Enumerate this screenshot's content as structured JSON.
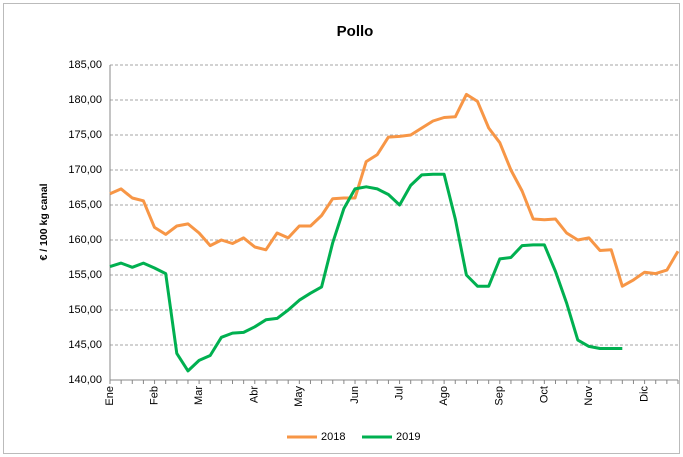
{
  "chart_data": {
    "type": "line",
    "title": "Pollo",
    "y_label": "€ / 100 kg canal",
    "categories": [
      "Ene",
      null,
      null,
      null,
      "Feb",
      null,
      null,
      null,
      "Mar",
      null,
      null,
      null,
      null,
      "Abr",
      null,
      null,
      null,
      "May",
      null,
      null,
      null,
      null,
      "Jun",
      null,
      null,
      null,
      "Jul",
      null,
      null,
      null,
      "Ago",
      null,
      null,
      null,
      null,
      "Sep",
      null,
      null,
      null,
      "Oct",
      null,
      null,
      null,
      "Nov",
      null,
      null,
      null,
      null,
      "Dic",
      null,
      null,
      null
    ],
    "series": [
      {
        "name": "2018",
        "color": "#f79646",
        "values": [
          166.6,
          167.3,
          166,
          165.6,
          161.8,
          160.8,
          162,
          162.3,
          161,
          159.2,
          160,
          159.5,
          160.3,
          159,
          158.6,
          161,
          160.3,
          162,
          162,
          163.5,
          165.9,
          166,
          166,
          171.2,
          172.2,
          174.7,
          174.8,
          175,
          176,
          177,
          177.5,
          177.6,
          180.8,
          179.8,
          176,
          173.9,
          170,
          167,
          163,
          162.9,
          163,
          161,
          160,
          160.3,
          158.5,
          158.6,
          153.4,
          154.3,
          155.4,
          155.2,
          155.7,
          158.4
        ]
      },
      {
        "name": "2019",
        "color": "#00b050",
        "values": [
          156.2,
          156.7,
          156.1,
          156.7,
          156,
          155.2,
          143.8,
          141.3,
          142.8,
          143.5,
          146.1,
          146.7,
          146.8,
          147.6,
          148.6,
          148.8,
          150,
          151.4,
          152.4,
          153.3,
          159.6,
          164.5,
          167.3,
          167.6,
          167.3,
          166.5,
          165,
          167.8,
          169.3,
          169.4,
          169.4,
          163,
          155,
          153.4,
          153.4,
          157.3,
          157.5,
          159.2,
          159.3,
          159.3,
          155.5,
          151,
          145.7,
          144.8,
          144.5,
          144.5,
          144.5,
          null,
          null,
          null,
          null,
          null
        ]
      }
    ],
    "ylim": [
      140,
      185
    ],
    "yticks": [
      {
        "value": 140,
        "label": "140,00"
      },
      {
        "value": 145,
        "label": "145,00"
      },
      {
        "value": 150,
        "label": "150,00"
      },
      {
        "value": 155,
        "label": "155,00"
      },
      {
        "value": 160,
        "label": "160,00"
      },
      {
        "value": 165,
        "label": "165,00"
      },
      {
        "value": 170,
        "label": "170,00"
      },
      {
        "value": 175,
        "label": "175,00"
      },
      {
        "value": 180,
        "label": "180,00"
      },
      {
        "value": 185,
        "label": "185,00"
      }
    ],
    "grid": true,
    "legend": "bottom"
  }
}
